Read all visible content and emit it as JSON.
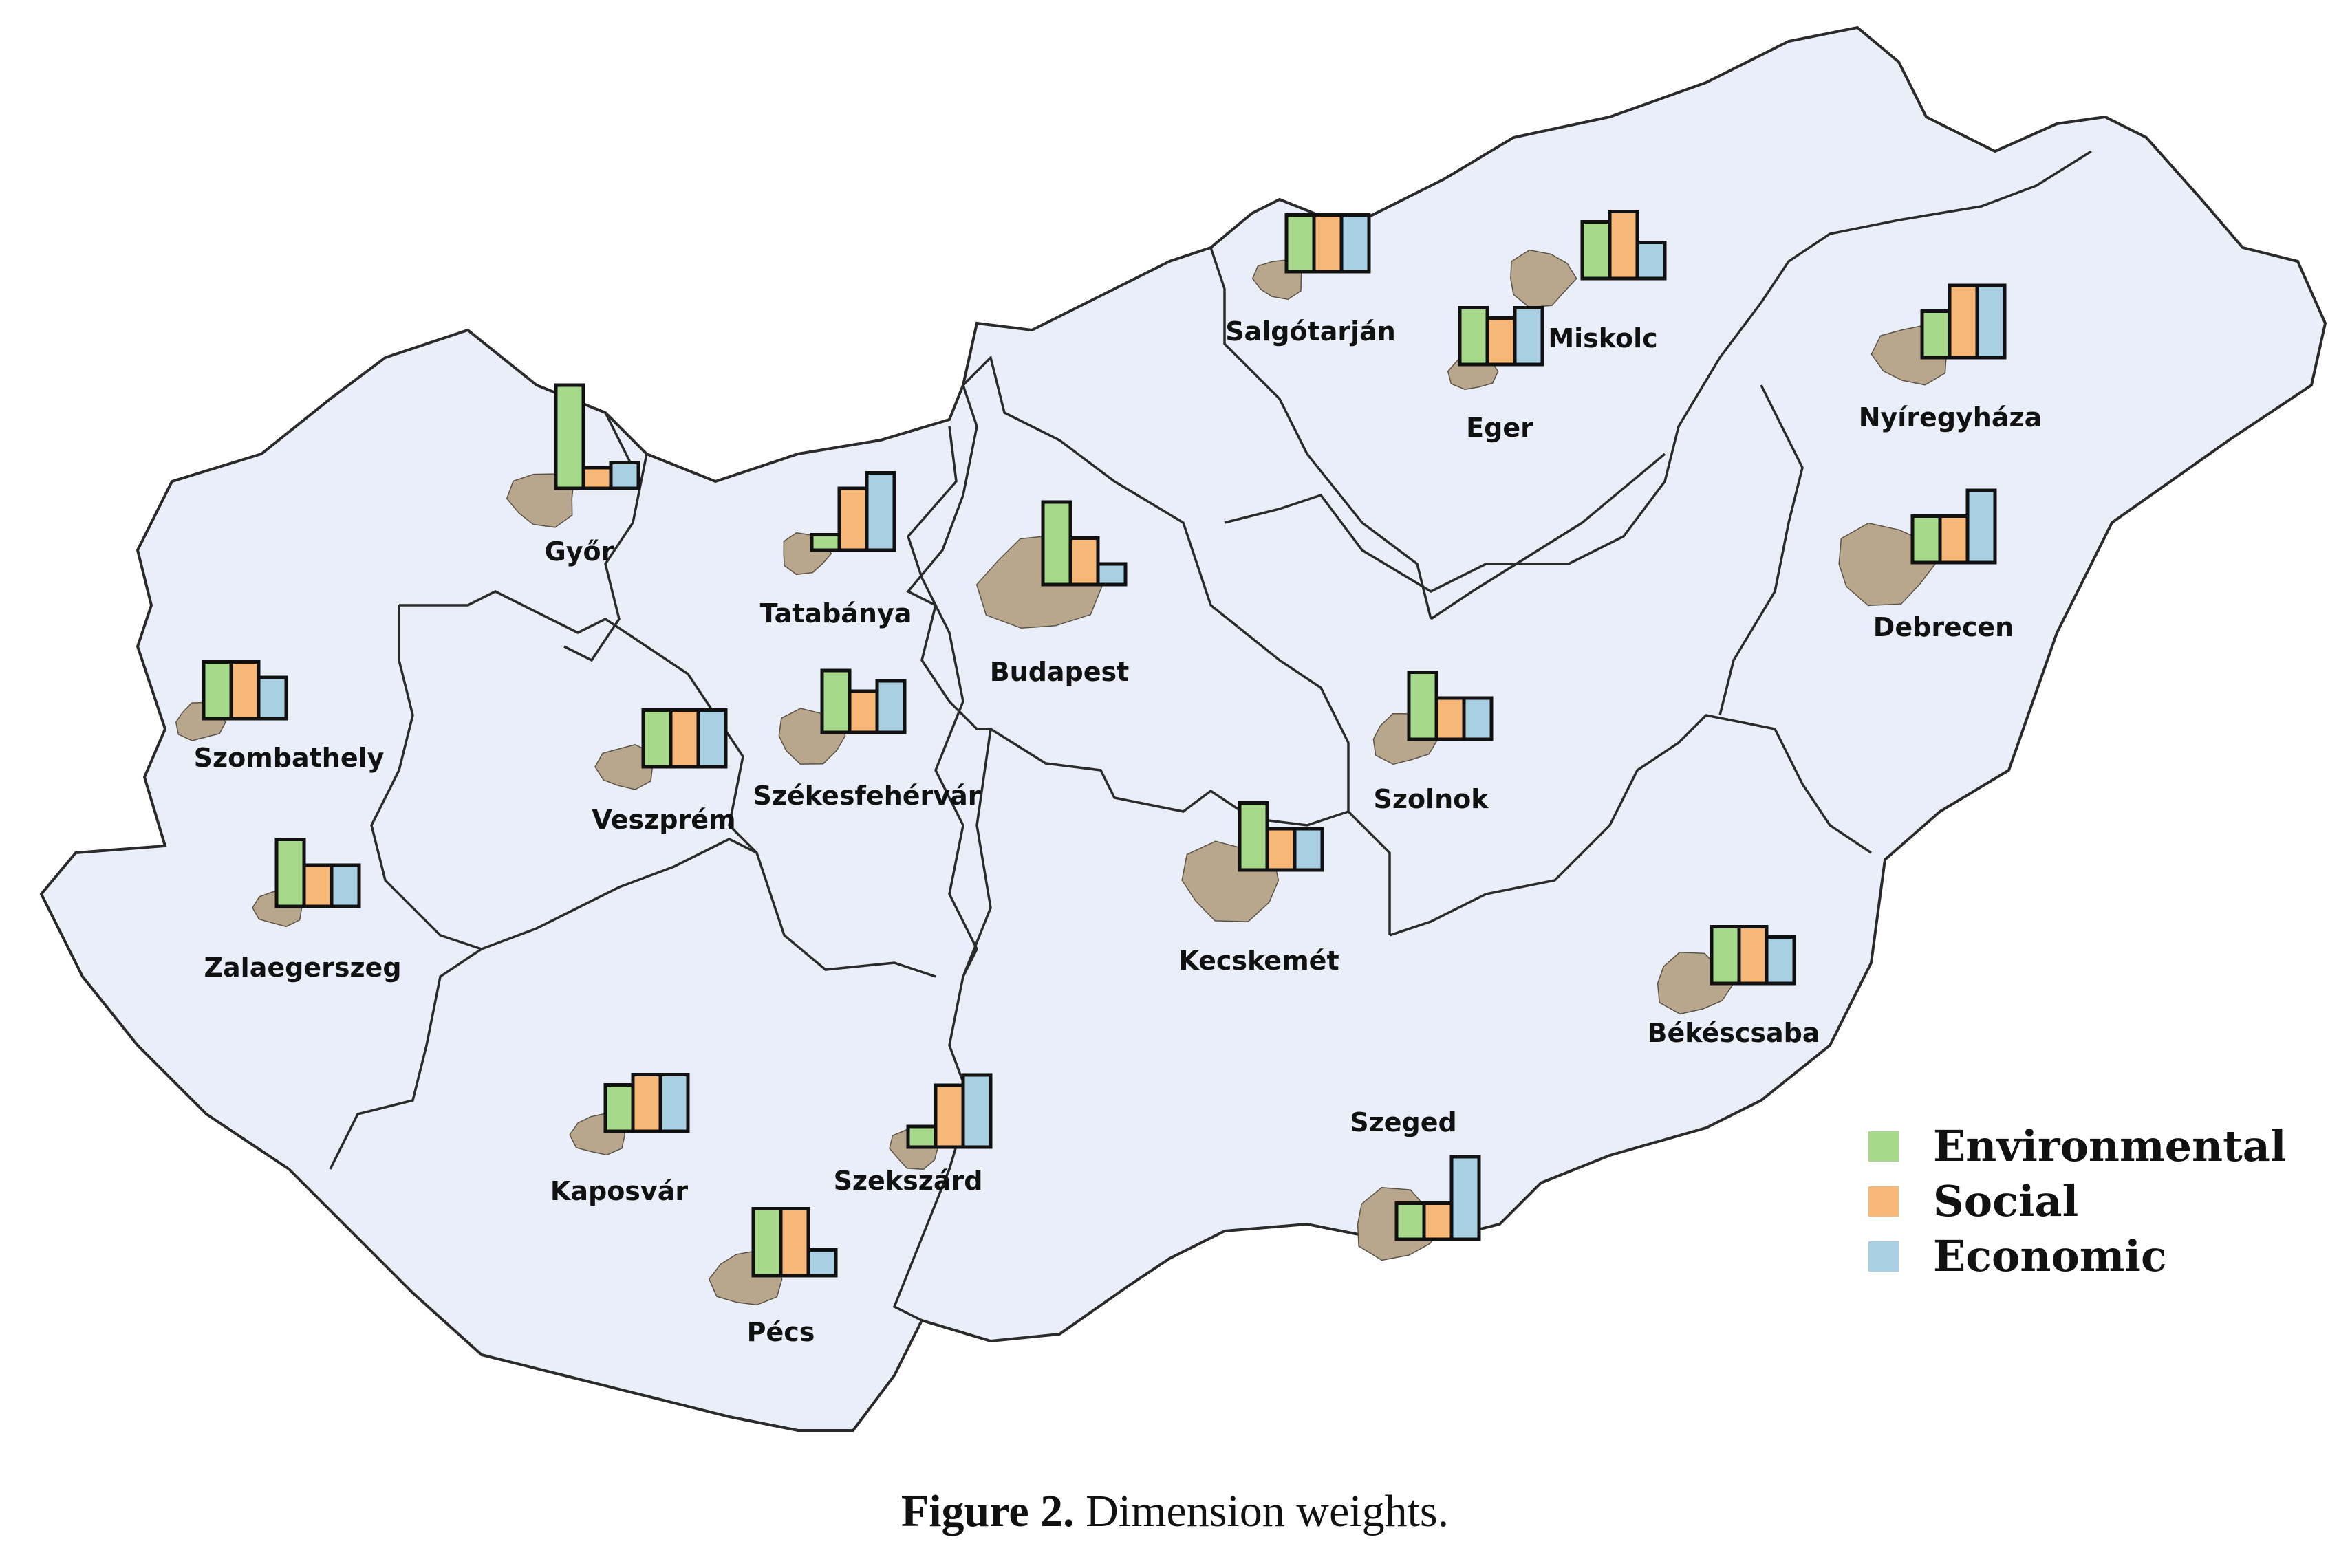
{
  "colors": {
    "land": "#e9eef8",
    "border": "#2a2a2a",
    "city": "#b8a78c",
    "environmental": "#a6d98a",
    "social": "#f7b877",
    "economic": "#a9cfe3"
  },
  "legend": {
    "environmental": "Environmental",
    "social": "Social",
    "economic": "Economic"
  },
  "caption": {
    "label": "Figure 2.",
    "text": "Dimension weights."
  },
  "chart_data": {
    "type": "bar",
    "series": [
      "Environmental",
      "Social",
      "Economic"
    ],
    "cities": [
      {
        "name": "Győr",
        "values": [
          1.0,
          0.2,
          0.25
        ]
      },
      {
        "name": "Tatabánya",
        "values": [
          0.15,
          0.6,
          0.75
        ]
      },
      {
        "name": "Budapest",
        "values": [
          0.8,
          0.45,
          0.2
        ]
      },
      {
        "name": "Salgótarján",
        "values": [
          0.55,
          0.55,
          0.55
        ]
      },
      {
        "name": "Miskolc",
        "values": [
          0.55,
          0.65,
          0.35
        ]
      },
      {
        "name": "Eger",
        "values": [
          0.55,
          0.45,
          0.55
        ]
      },
      {
        "name": "Nyíregyháza",
        "values": [
          0.45,
          0.7,
          0.7
        ]
      },
      {
        "name": "Debrecen",
        "values": [
          0.45,
          0.45,
          0.7
        ]
      },
      {
        "name": "Szombathely",
        "values": [
          0.55,
          0.55,
          0.4
        ]
      },
      {
        "name": "Veszprém",
        "values": [
          0.55,
          0.55,
          0.55
        ]
      },
      {
        "name": "Székesfehérvár",
        "values": [
          0.6,
          0.4,
          0.5
        ]
      },
      {
        "name": "Szolnok",
        "values": [
          0.65,
          0.4,
          0.4
        ]
      },
      {
        "name": "Zalaegerszeg",
        "values": [
          0.65,
          0.4,
          0.4
        ]
      },
      {
        "name": "Kecskemét",
        "values": [
          0.65,
          0.4,
          0.4
        ]
      },
      {
        "name": "Békéscsaba",
        "values": [
          0.55,
          0.55,
          0.45
        ]
      },
      {
        "name": "Kaposvár",
        "values": [
          0.45,
          0.55,
          0.55
        ]
      },
      {
        "name": "Szekszárd",
        "values": [
          0.2,
          0.6,
          0.7
        ]
      },
      {
        "name": "Szeged",
        "values": [
          0.35,
          0.35,
          0.8
        ]
      },
      {
        "name": "Pécs",
        "values": [
          0.65,
          0.65,
          0.25
        ]
      }
    ]
  }
}
